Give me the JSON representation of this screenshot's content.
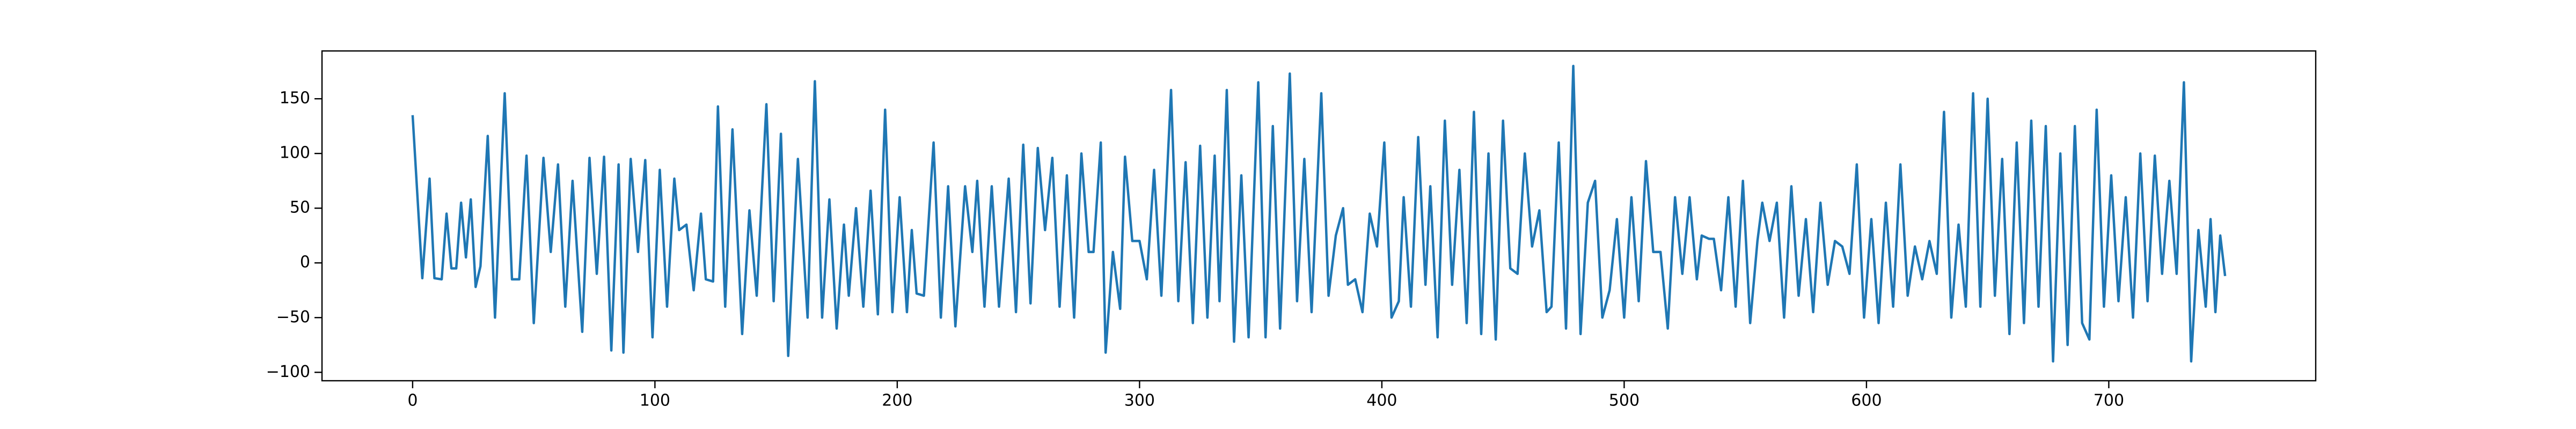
{
  "chart_data": {
    "type": "line",
    "x": [
      0,
      4,
      7,
      9,
      12,
      14,
      16,
      18,
      20,
      22,
      24,
      26,
      28,
      31,
      34,
      38,
      41,
      44,
      47,
      50,
      54,
      57,
      60,
      63,
      66,
      70,
      73,
      76,
      79,
      82,
      85,
      87,
      90,
      93,
      96,
      99,
      102,
      105,
      108,
      110,
      113,
      116,
      119,
      121,
      124,
      126,
      129,
      132,
      136,
      139,
      142,
      146,
      149,
      152,
      155,
      159,
      163,
      166,
      169,
      172,
      175,
      178,
      180,
      183,
      186,
      189,
      192,
      195,
      198,
      201,
      204,
      206,
      208,
      211,
      215,
      218,
      221,
      224,
      228,
      231,
      233,
      236,
      239,
      242,
      246,
      249,
      252,
      255,
      258,
      261,
      264,
      267,
      270,
      273,
      276,
      279,
      281,
      284,
      286,
      289,
      292,
      294,
      297,
      300,
      303,
      306,
      309,
      313,
      316,
      319,
      322,
      325,
      328,
      331,
      333,
      336,
      339,
      342,
      345,
      349,
      352,
      355,
      358,
      362,
      365,
      368,
      371,
      375,
      378,
      381,
      384,
      386,
      389,
      392,
      395,
      398,
      401,
      404,
      407,
      409,
      412,
      415,
      418,
      420,
      423,
      426,
      429,
      432,
      435,
      438,
      441,
      444,
      447,
      450,
      453,
      456,
      459,
      462,
      465,
      468,
      470,
      473,
      476,
      479,
      482,
      485,
      488,
      491,
      494,
      497,
      500,
      503,
      506,
      509,
      512,
      515,
      518,
      521,
      524,
      527,
      530,
      532,
      535,
      537,
      540,
      543,
      546,
      549,
      552,
      555,
      557,
      560,
      563,
      566,
      569,
      572,
      575,
      578,
      581,
      584,
      587,
      590,
      593,
      596,
      599,
      602,
      605,
      608,
      611,
      614,
      617,
      620,
      623,
      626,
      629,
      632,
      635,
      638,
      641,
      644,
      647,
      650,
      653,
      656,
      659,
      662,
      665,
      668,
      671,
      674,
      677,
      680,
      683,
      686,
      689,
      692,
      695,
      698,
      701,
      704,
      707,
      710,
      713,
      716,
      719,
      722,
      725,
      728,
      731,
      734,
      737,
      740,
      742,
      744,
      746,
      748
    ],
    "series": [
      {
        "color": "#1f77b4",
        "values": [
          135,
          -14,
          77,
          -14,
          -15,
          45,
          -5,
          -5,
          55,
          5,
          58,
          -22,
          -3,
          116,
          -50,
          155,
          -15,
          -15,
          98,
          -55,
          96,
          10,
          90,
          -40,
          75,
          -63,
          96,
          -10,
          97,
          -80,
          90,
          -82,
          95,
          10,
          94,
          -68,
          85,
          -40,
          77,
          30,
          35,
          -25,
          45,
          -15,
          -17,
          143,
          -40,
          122,
          -65,
          48,
          -30,
          145,
          -35,
          118,
          -85,
          95,
          -50,
          166,
          -50,
          58,
          -60,
          35,
          -30,
          50,
          -40,
          66,
          -47,
          140,
          -45,
          60,
          -45,
          30,
          -28,
          -30,
          110,
          -50,
          70,
          -58,
          70,
          10,
          75,
          -40,
          70,
          -40,
          77,
          -45,
          108,
          -37,
          105,
          30,
          96,
          -40,
          80,
          -50,
          100,
          10,
          10,
          110,
          -82,
          10,
          -42,
          97,
          20,
          20,
          -15,
          85,
          -30,
          158,
          -35,
          92,
          -55,
          107,
          -50,
          98,
          -35,
          158,
          -72,
          80,
          -68,
          165,
          -68,
          125,
          -60,
          173,
          -35,
          95,
          -45,
          155,
          -30,
          25,
          50,
          -20,
          -15,
          -45,
          45,
          15,
          110,
          -50,
          -35,
          60,
          -40,
          115,
          -20,
          70,
          -68,
          130,
          -20,
          85,
          -55,
          138,
          -65,
          100,
          -70,
          130,
          -5,
          -10,
          100,
          15,
          48,
          -45,
          -40,
          110,
          -60,
          180,
          -65,
          55,
          75,
          -50,
          -25,
          40,
          -50,
          60,
          -35,
          93,
          10,
          10,
          -60,
          60,
          -10,
          60,
          -15,
          25,
          22,
          22,
          -25,
          60,
          -40,
          75,
          -55,
          20,
          55,
          20,
          55,
          -50,
          70,
          -30,
          40,
          -45,
          55,
          -20,
          20,
          15,
          -10,
          90,
          -50,
          40,
          -55,
          55,
          -40,
          90,
          -30,
          15,
          -15,
          20,
          -10,
          138,
          -50,
          35,
          -40,
          155,
          -40,
          150,
          -30,
          95,
          -65,
          110,
          -55,
          130,
          -40,
          125,
          -90,
          100,
          -75,
          125,
          -55,
          -70,
          140,
          -40,
          80,
          -35,
          60,
          -50,
          100,
          -35,
          98,
          -10,
          75,
          -10,
          165,
          -90,
          30,
          -40,
          40,
          -45,
          25,
          -12
        ]
      }
    ],
    "xlim": [
      -37.4,
      785.4
    ],
    "xticks": [
      0,
      100,
      200,
      300,
      400,
      500,
      600,
      700
    ],
    "ylim": [
      -107.7,
      193.7
    ],
    "yticks": [
      {
        "value": -100,
        "label": "−100"
      },
      {
        "value": -50,
        "label": "−50"
      },
      0,
      50,
      100,
      150
    ]
  }
}
